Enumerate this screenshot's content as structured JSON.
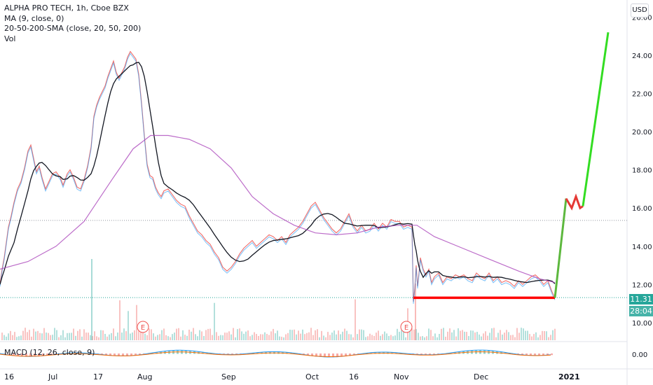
{
  "chart_data": {
    "type": "line",
    "title": "ALPHA PRO TECH, 1h, Cboe BZX",
    "indicators": [
      "MA (9, close, 0)",
      "20-50-200-SMA (close, 20, 50, 200)",
      "Vol"
    ],
    "currency": "USD",
    "x_tick_labels": [
      "16",
      "Jul",
      "17",
      "Aug",
      "Sep",
      "Oct",
      "16",
      "Nov",
      "Dec",
      "2021"
    ],
    "y_ticks": [
      10.0,
      12.0,
      14.0,
      16.0,
      18.0,
      20.0,
      22.0,
      24.0,
      26.0
    ],
    "y_tick_labels": [
      "10.00",
      "12.00",
      "14.00",
      "16.00",
      "18.00",
      "20.00",
      "22.00",
      "24.00",
      "26.00"
    ],
    "ylim": [
      9.3,
      26.6
    ],
    "last_price": "11.31",
    "countdown": "28:04",
    "earnings_markers": [
      "E",
      "E"
    ],
    "macd_label": "MACD (12, 26, close, 9)",
    "macd_tick": "0.00",
    "price_series": {
      "x": [
        0,
        3,
        6,
        9,
        12,
        16,
        20,
        25,
        30,
        35,
        40,
        44,
        48,
        52,
        56,
        60,
        65,
        70,
        75,
        80,
        86,
        90,
        96,
        100,
        105,
        110,
        115,
        120,
        125,
        130,
        134,
        138,
        142,
        146,
        150,
        154,
        158,
        162,
        166,
        170,
        174,
        178,
        182,
        186,
        190,
        194,
        198,
        202,
        206,
        210,
        214,
        218,
        222,
        226,
        230,
        234,
        240,
        246,
        252,
        258,
        264,
        270,
        276,
        282,
        288,
        294,
        300,
        306,
        312,
        318,
        324,
        330,
        336,
        342,
        348,
        354,
        360,
        366,
        372,
        378,
        384,
        390,
        396,
        402,
        408,
        414,
        420,
        426,
        432,
        438,
        444,
        450,
        456,
        462,
        468,
        474,
        480,
        486,
        492,
        498,
        504,
        510,
        516,
        522,
        528,
        534,
        540,
        546,
        552,
        558,
        564,
        570,
        576,
        582,
        588,
        590,
        592,
        594,
        596,
        598,
        600,
        604,
        608,
        612,
        616,
        620,
        626,
        632,
        638,
        644,
        650,
        656,
        662,
        668,
        674,
        680,
        686,
        692,
        698,
        704,
        710,
        716,
        722,
        728,
        734,
        740,
        746,
        752,
        758,
        764,
        770,
        776,
        782,
        788,
        792
      ],
      "y": [
        12.0,
        12.8,
        13.4,
        14.2,
        15.0,
        15.6,
        16.3,
        17.0,
        17.4,
        18.1,
        19.0,
        19.3,
        18.6,
        17.9,
        18.2,
        17.6,
        17.0,
        17.4,
        17.8,
        17.9,
        17.6,
        17.2,
        17.8,
        18.0,
        17.6,
        17.1,
        17.0,
        17.5,
        18.2,
        19.2,
        20.8,
        21.4,
        21.8,
        22.1,
        22.4,
        22.9,
        23.3,
        23.7,
        23.1,
        22.8,
        23.1,
        23.4,
        23.9,
        24.2,
        24.0,
        23.8,
        23.0,
        21.5,
        19.8,
        18.3,
        17.7,
        17.6,
        17.1,
        16.8,
        16.6,
        16.9,
        17.0,
        16.7,
        16.4,
        16.2,
        16.1,
        15.6,
        15.2,
        14.8,
        14.6,
        14.3,
        14.1,
        13.7,
        13.4,
        12.9,
        12.7,
        12.9,
        13.2,
        13.6,
        13.9,
        14.1,
        14.3,
        14.0,
        14.2,
        14.4,
        14.6,
        14.5,
        14.3,
        14.5,
        14.2,
        14.6,
        14.8,
        15.0,
        15.3,
        15.7,
        16.1,
        16.3,
        15.9,
        15.5,
        15.2,
        14.9,
        14.7,
        14.9,
        15.3,
        15.7,
        15.1,
        14.8,
        15.1,
        14.8,
        14.9,
        15.2,
        14.9,
        15.2,
        15.0,
        15.4,
        15.3,
        15.3,
        15.0,
        15.1,
        15.0,
        11.1,
        11.8,
        13.0,
        11.9,
        12.6,
        13.4,
        12.8,
        12.5,
        12.8,
        12.1,
        12.4,
        12.6,
        12.1,
        12.4,
        12.3,
        12.5,
        12.4,
        12.5,
        12.3,
        12.2,
        12.6,
        12.4,
        12.3,
        12.6,
        12.2,
        12.4,
        12.1,
        12.2,
        12.1,
        11.9,
        12.2,
        12.0,
        12.2,
        12.4,
        12.5,
        12.3,
        12.0,
        12.2,
        11.6,
        11.3
      ]
    },
    "sma200_series": {
      "x": [
        0,
        40,
        80,
        120,
        160,
        190,
        215,
        240,
        270,
        300,
        330,
        360,
        390,
        420,
        450,
        480,
        510,
        540,
        570,
        595,
        620,
        660,
        700,
        740,
        770,
        792
      ],
      "y": [
        12.8,
        13.2,
        14.0,
        15.3,
        17.5,
        19.1,
        19.8,
        19.8,
        19.6,
        19.1,
        18.1,
        16.6,
        15.7,
        15.1,
        14.7,
        14.6,
        14.7,
        15.0,
        15.1,
        15.1,
        14.5,
        13.9,
        13.3,
        12.7,
        12.3,
        12.1
      ]
    },
    "projection_red": {
      "x": [
        590,
        792
      ],
      "y": [
        11.3,
        11.3
      ]
    },
    "projection_green": {
      "x": [
        792,
        808,
        816,
        822,
        828,
        832,
        868
      ],
      "y": [
        11.3,
        16.5,
        16.0,
        16.6,
        16.0,
        16.1,
        25.2
      ]
    }
  }
}
